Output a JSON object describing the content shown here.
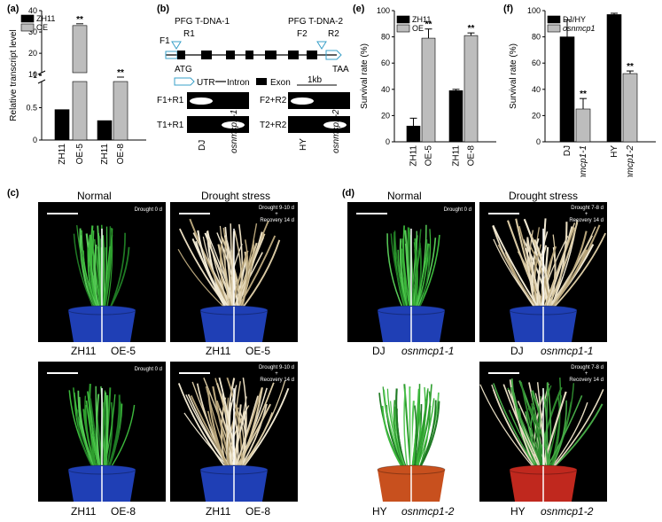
{
  "panel_labels": {
    "a": "(a)",
    "b": "(b)",
    "c": "(c)",
    "d": "(d)",
    "e": "(e)",
    "f": "(f)"
  },
  "chart_data": [
    {
      "panel": "a",
      "type": "bar",
      "ylabel": "Relative transcript level",
      "categories": [
        "ZH11",
        "OE-5",
        "ZH11",
        "OE-8"
      ],
      "series": [
        {
          "name": "ZH11",
          "color": "#000000",
          "values": [
            0.47,
            null,
            0.3,
            null
          ]
        },
        {
          "name": "OE",
          "color": "#bdbdbd",
          "values": [
            null,
            33,
            null,
            8
          ]
        }
      ],
      "y_ticks_lower": [
        "0",
        "0.5",
        "1"
      ],
      "y_ticks_upper": [
        "10",
        "20",
        "30",
        "40"
      ],
      "annotations": [
        "**",
        "**"
      ]
    },
    {
      "panel": "e",
      "type": "bar",
      "ylabel": "Survival rate (%)",
      "ylim": [
        0,
        100
      ],
      "y_ticks": [
        "0",
        "20",
        "40",
        "60",
        "80",
        "100"
      ],
      "categories": [
        "ZH11",
        "OE-5",
        "ZH11",
        "OE-8"
      ],
      "series": [
        {
          "name": "ZH11",
          "color": "#000000",
          "values": [
            12,
            null,
            39,
            null
          ]
        },
        {
          "name": "OE",
          "color": "#bdbdbd",
          "values": [
            null,
            79,
            null,
            81
          ]
        }
      ],
      "annotations": [
        "**",
        "**"
      ]
    },
    {
      "panel": "f",
      "type": "bar",
      "ylabel": "Survival rate (%)",
      "ylim": [
        0,
        100
      ],
      "y_ticks": [
        "0",
        "20",
        "40",
        "60",
        "80",
        "100"
      ],
      "categories": [
        "DJ",
        "osnmcp1-1",
        "HY",
        "osnmcp1-2"
      ],
      "series": [
        {
          "name": "DJ/HY",
          "color": "#000000",
          "values": [
            80,
            null,
            97,
            null
          ]
        },
        {
          "name": "osnmcp1",
          "color": "#bdbdbd",
          "values": [
            null,
            25,
            null,
            52
          ]
        }
      ],
      "annotations": [
        "**",
        "**"
      ]
    }
  ],
  "gene_diagram": {
    "title_left": "PFG T-DNA-1",
    "title_right": "PFG T-DNA-2",
    "primers": {
      "F1": "F1",
      "R1": "R1",
      "F2": "F2",
      "R2": "R2"
    },
    "start": "ATG",
    "stop": "TAA",
    "legend": {
      "utr": "UTR",
      "intron": "Intron",
      "exon": "Exon",
      "scale": "1kb"
    },
    "gel_rows_left": [
      "F1+R1",
      "T1+R1"
    ],
    "gel_rows_right": [
      "F2+R2",
      "T2+R2"
    ],
    "gel_lanes_left": [
      "DJ",
      "osnmcp1-1"
    ],
    "gel_lanes_right": [
      "HY",
      "osnmcp1-2"
    ]
  },
  "panel_c": {
    "col_headers": [
      "Normal",
      "Drought stress"
    ],
    "photo_labels": {
      "normal": "Drought 0 d",
      "stress_line1": "Drought 9-10 d",
      "plus": "+",
      "stress_line2": "Recovery 14 d"
    },
    "captions_top": [
      "ZH11",
      "OE-5"
    ],
    "captions_bottom": [
      "ZH11",
      "OE-8"
    ]
  },
  "panel_d": {
    "col_headers": [
      "Normal",
      "Drought stress"
    ],
    "photo_labels": {
      "normal": "Drought 0 d",
      "stress_line1": "Drought 7-8 d",
      "plus": "+",
      "stress_line2": "Recovery 14 d"
    },
    "captions_top": [
      "DJ",
      "osnmcp1-1"
    ],
    "captions_bottom": [
      "HY",
      "osnmcp1-2"
    ]
  }
}
